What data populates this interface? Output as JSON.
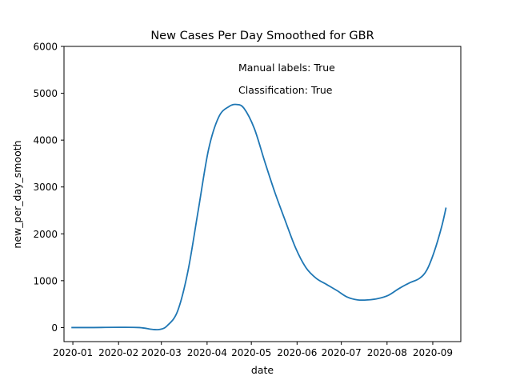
{
  "chart_data": {
    "type": "line",
    "title": "New Cases Per Day Smoothed for GBR",
    "xlabel": "date",
    "ylabel": "new_per_day_smooth",
    "ylim": [
      -300,
      6000
    ],
    "xlim": [
      "2019-12-26",
      "2020-09-20"
    ],
    "yticks": [
      0,
      1000,
      2000,
      3000,
      4000,
      5000,
      6000
    ],
    "xticks": [
      {
        "label": "2020-01",
        "date": "2020-01-01"
      },
      {
        "label": "2020-02",
        "date": "2020-02-01"
      },
      {
        "label": "2020-03",
        "date": "2020-03-01"
      },
      {
        "label": "2020-04",
        "date": "2020-04-01"
      },
      {
        "label": "2020-05",
        "date": "2020-05-01"
      },
      {
        "label": "2020-06",
        "date": "2020-06-01"
      },
      {
        "label": "2020-07",
        "date": "2020-07-01"
      },
      {
        "label": "2020-08",
        "date": "2020-08-01"
      },
      {
        "label": "2020-09",
        "date": "2020-09-01"
      }
    ],
    "annotations": [
      "Manual labels: True",
      "Classification: True"
    ],
    "grid": false,
    "line_color": "#1f77b4",
    "series": [
      {
        "points": [
          {
            "x": "2019-12-31",
            "y": 0
          },
          {
            "x": "2020-01-15",
            "y": 0
          },
          {
            "x": "2020-02-01",
            "y": 5
          },
          {
            "x": "2020-02-15",
            "y": 0
          },
          {
            "x": "2020-02-24",
            "y": -40
          },
          {
            "x": "2020-02-29",
            "y": -40
          },
          {
            "x": "2020-03-05",
            "y": 40
          },
          {
            "x": "2020-03-12",
            "y": 350
          },
          {
            "x": "2020-03-19",
            "y": 1200
          },
          {
            "x": "2020-03-26",
            "y": 2500
          },
          {
            "x": "2020-04-02",
            "y": 3800
          },
          {
            "x": "2020-04-09",
            "y": 4500
          },
          {
            "x": "2020-04-16",
            "y": 4720
          },
          {
            "x": "2020-04-21",
            "y": 4760
          },
          {
            "x": "2020-04-26",
            "y": 4680
          },
          {
            "x": "2020-05-03",
            "y": 4250
          },
          {
            "x": "2020-05-10",
            "y": 3550
          },
          {
            "x": "2020-05-17",
            "y": 2880
          },
          {
            "x": "2020-05-24",
            "y": 2280
          },
          {
            "x": "2020-05-31",
            "y": 1700
          },
          {
            "x": "2020-06-07",
            "y": 1280
          },
          {
            "x": "2020-06-14",
            "y": 1050
          },
          {
            "x": "2020-06-21",
            "y": 920
          },
          {
            "x": "2020-06-28",
            "y": 790
          },
          {
            "x": "2020-07-05",
            "y": 650
          },
          {
            "x": "2020-07-12",
            "y": 590
          },
          {
            "x": "2020-07-19",
            "y": 590
          },
          {
            "x": "2020-07-26",
            "y": 620
          },
          {
            "x": "2020-08-02",
            "y": 690
          },
          {
            "x": "2020-08-09",
            "y": 830
          },
          {
            "x": "2020-08-16",
            "y": 950
          },
          {
            "x": "2020-08-23",
            "y": 1050
          },
          {
            "x": "2020-08-28",
            "y": 1230
          },
          {
            "x": "2020-09-02",
            "y": 1620
          },
          {
            "x": "2020-09-07",
            "y": 2150
          },
          {
            "x": "2020-09-10",
            "y": 2560
          }
        ]
      }
    ]
  }
}
